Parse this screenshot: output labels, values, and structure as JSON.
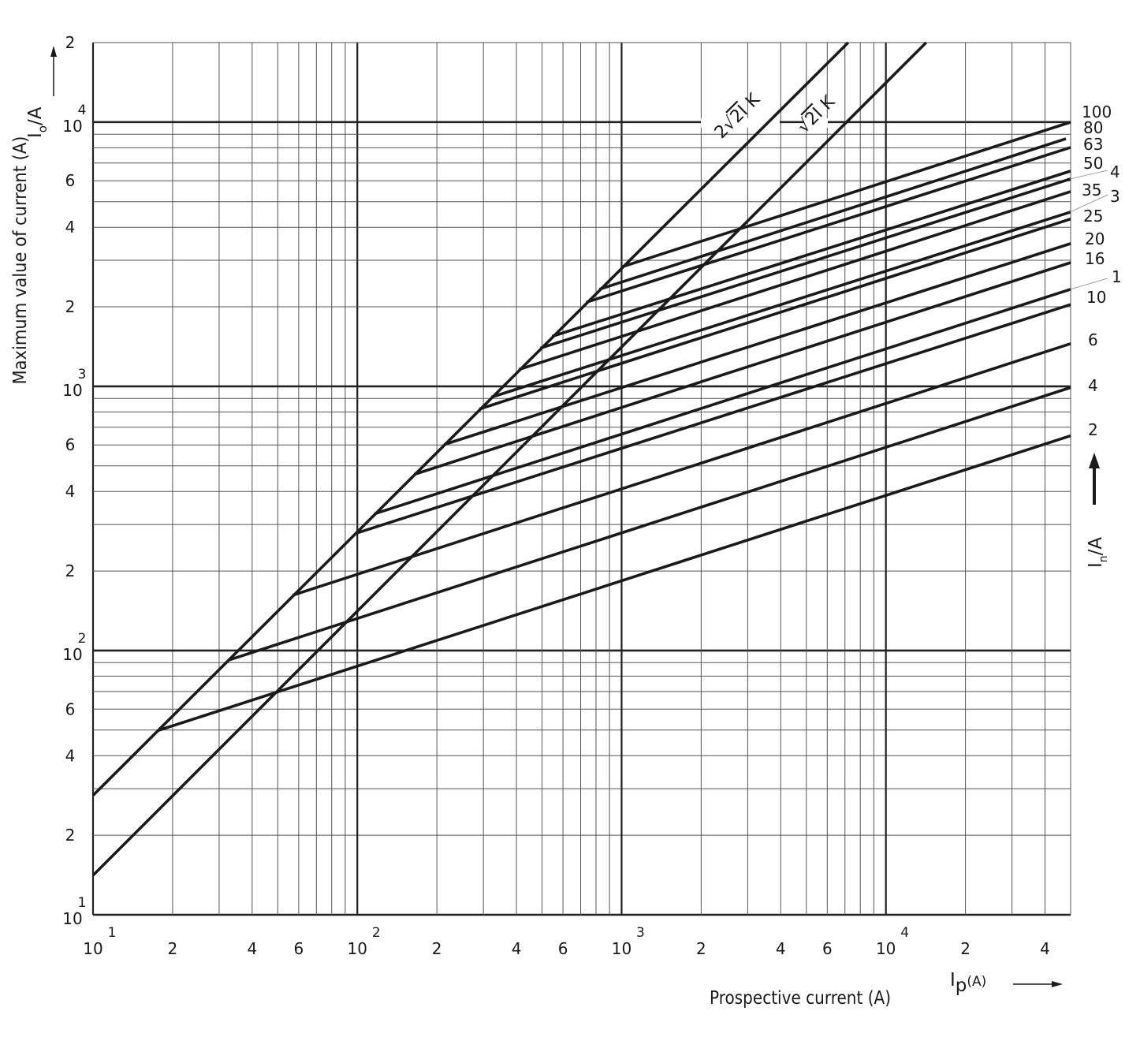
{
  "chart_data": {
    "type": "line",
    "x_scale": "log",
    "y_scale": "log",
    "xlim": [
      10,
      50000
    ],
    "ylim": [
      10,
      20000
    ],
    "grid": true,
    "xlabel": "Prospective current (A)",
    "ylabel": "Maximum value of current (A)",
    "x_symbol": "I",
    "x_symbol_sub": "p",
    "x_symbol_unit": "(A)",
    "y_symbol": "I",
    "y_symbol_sub": "o",
    "y_symbol_unit": "/A",
    "series_symbol": "I",
    "series_symbol_sub": "n",
    "series_symbol_unit": "/A",
    "x_ticks": [
      {
        "value": 10,
        "base": "10",
        "exp": "1"
      },
      {
        "value": 20,
        "label": "2"
      },
      {
        "value": 40,
        "label": "4"
      },
      {
        "value": 60,
        "label": "6"
      },
      {
        "value": 100,
        "base": "10",
        "exp": "2"
      },
      {
        "value": 200,
        "label": "2"
      },
      {
        "value": 400,
        "label": "4"
      },
      {
        "value": 600,
        "label": "6"
      },
      {
        "value": 1000,
        "base": "10",
        "exp": "3"
      },
      {
        "value": 2000,
        "label": "2"
      },
      {
        "value": 4000,
        "label": "4"
      },
      {
        "value": 6000,
        "label": "6"
      },
      {
        "value": 10000,
        "base": "10",
        "exp": "4"
      },
      {
        "value": 20000,
        "label": "2"
      },
      {
        "value": 40000,
        "label": "4"
      }
    ],
    "y_ticks": [
      {
        "value": 10,
        "base": "10",
        "exp": "1"
      },
      {
        "value": 20,
        "label": "2"
      },
      {
        "value": 40,
        "label": "4"
      },
      {
        "value": 60,
        "label": "6"
      },
      {
        "value": 100,
        "base": "10",
        "exp": "2"
      },
      {
        "value": 200,
        "label": "2"
      },
      {
        "value": 400,
        "label": "4"
      },
      {
        "value": 600,
        "label": "6"
      },
      {
        "value": 1000,
        "base": "10",
        "exp": "3"
      },
      {
        "value": 2000,
        "label": "2"
      },
      {
        "value": 4000,
        "label": "4"
      },
      {
        "value": 6000,
        "label": "6"
      },
      {
        "value": 10000,
        "base": "10",
        "exp": "4"
      },
      {
        "value": 20000,
        "label": "2"
      }
    ],
    "reference_lines": [
      {
        "name": "2√2I K",
        "label_prefix": "2",
        "label_root": "√",
        "label_radicand": "2I",
        "label_suffix": "K",
        "points": [
          [
            10,
            28.3
          ],
          [
            7200,
            20000
          ]
        ]
      },
      {
        "name": "√2I K",
        "label_prefix": "",
        "label_root": "√",
        "label_radicand": "2I",
        "label_suffix": "K",
        "points": [
          [
            10,
            14.1
          ],
          [
            14200,
            20000
          ]
        ]
      }
    ],
    "series": [
      {
        "name": "100",
        "points": [
          [
            1000,
            2830
          ],
          [
            50000,
            10000
          ]
        ]
      },
      {
        "name": "80",
        "points": [
          [
            824,
            2330
          ],
          [
            48000,
            8650
          ]
        ]
      },
      {
        "name": "63",
        "points": [
          [
            735,
            2080
          ],
          [
            50000,
            8020
          ]
        ]
      },
      {
        "name": "50",
        "points": [
          [
            546,
            1546
          ],
          [
            50000,
            6530
          ]
        ]
      },
      {
        "name": "4",
        "points": [
          [
            493,
            1395
          ],
          [
            50000,
            6100
          ]
        ]
      },
      {
        "name": "35",
        "points": [
          [
            409,
            1158
          ],
          [
            50000,
            5460
          ]
        ]
      },
      {
        "name": "3",
        "points": [
          [
            322,
            910
          ],
          [
            50000,
            4570
          ]
        ]
      },
      {
        "name": "25",
        "points": [
          [
            290,
            821
          ],
          [
            50000,
            4300
          ]
        ]
      },
      {
        "name": "20",
        "points": [
          [
            213,
            602
          ],
          [
            50000,
            3470
          ]
        ]
      },
      {
        "name": "16",
        "points": [
          [
            164,
            464
          ],
          [
            50000,
            2940
          ]
        ]
      },
      {
        "name": "1",
        "points": [
          [
            116,
            329
          ],
          [
            50000,
            2330
          ]
        ]
      },
      {
        "name": "10",
        "points": [
          [
            98,
            277
          ],
          [
            50000,
            2040
          ]
        ]
      },
      {
        "name": "6",
        "points": [
          [
            57,
            162
          ],
          [
            50000,
            1450
          ]
        ]
      },
      {
        "name": "4",
        "points": [
          [
            32.6,
            92
          ],
          [
            50000,
            990
          ]
        ]
      },
      {
        "name": "2",
        "points": [
          [
            17.6,
            49.8
          ],
          [
            50000,
            650
          ]
        ]
      }
    ]
  }
}
